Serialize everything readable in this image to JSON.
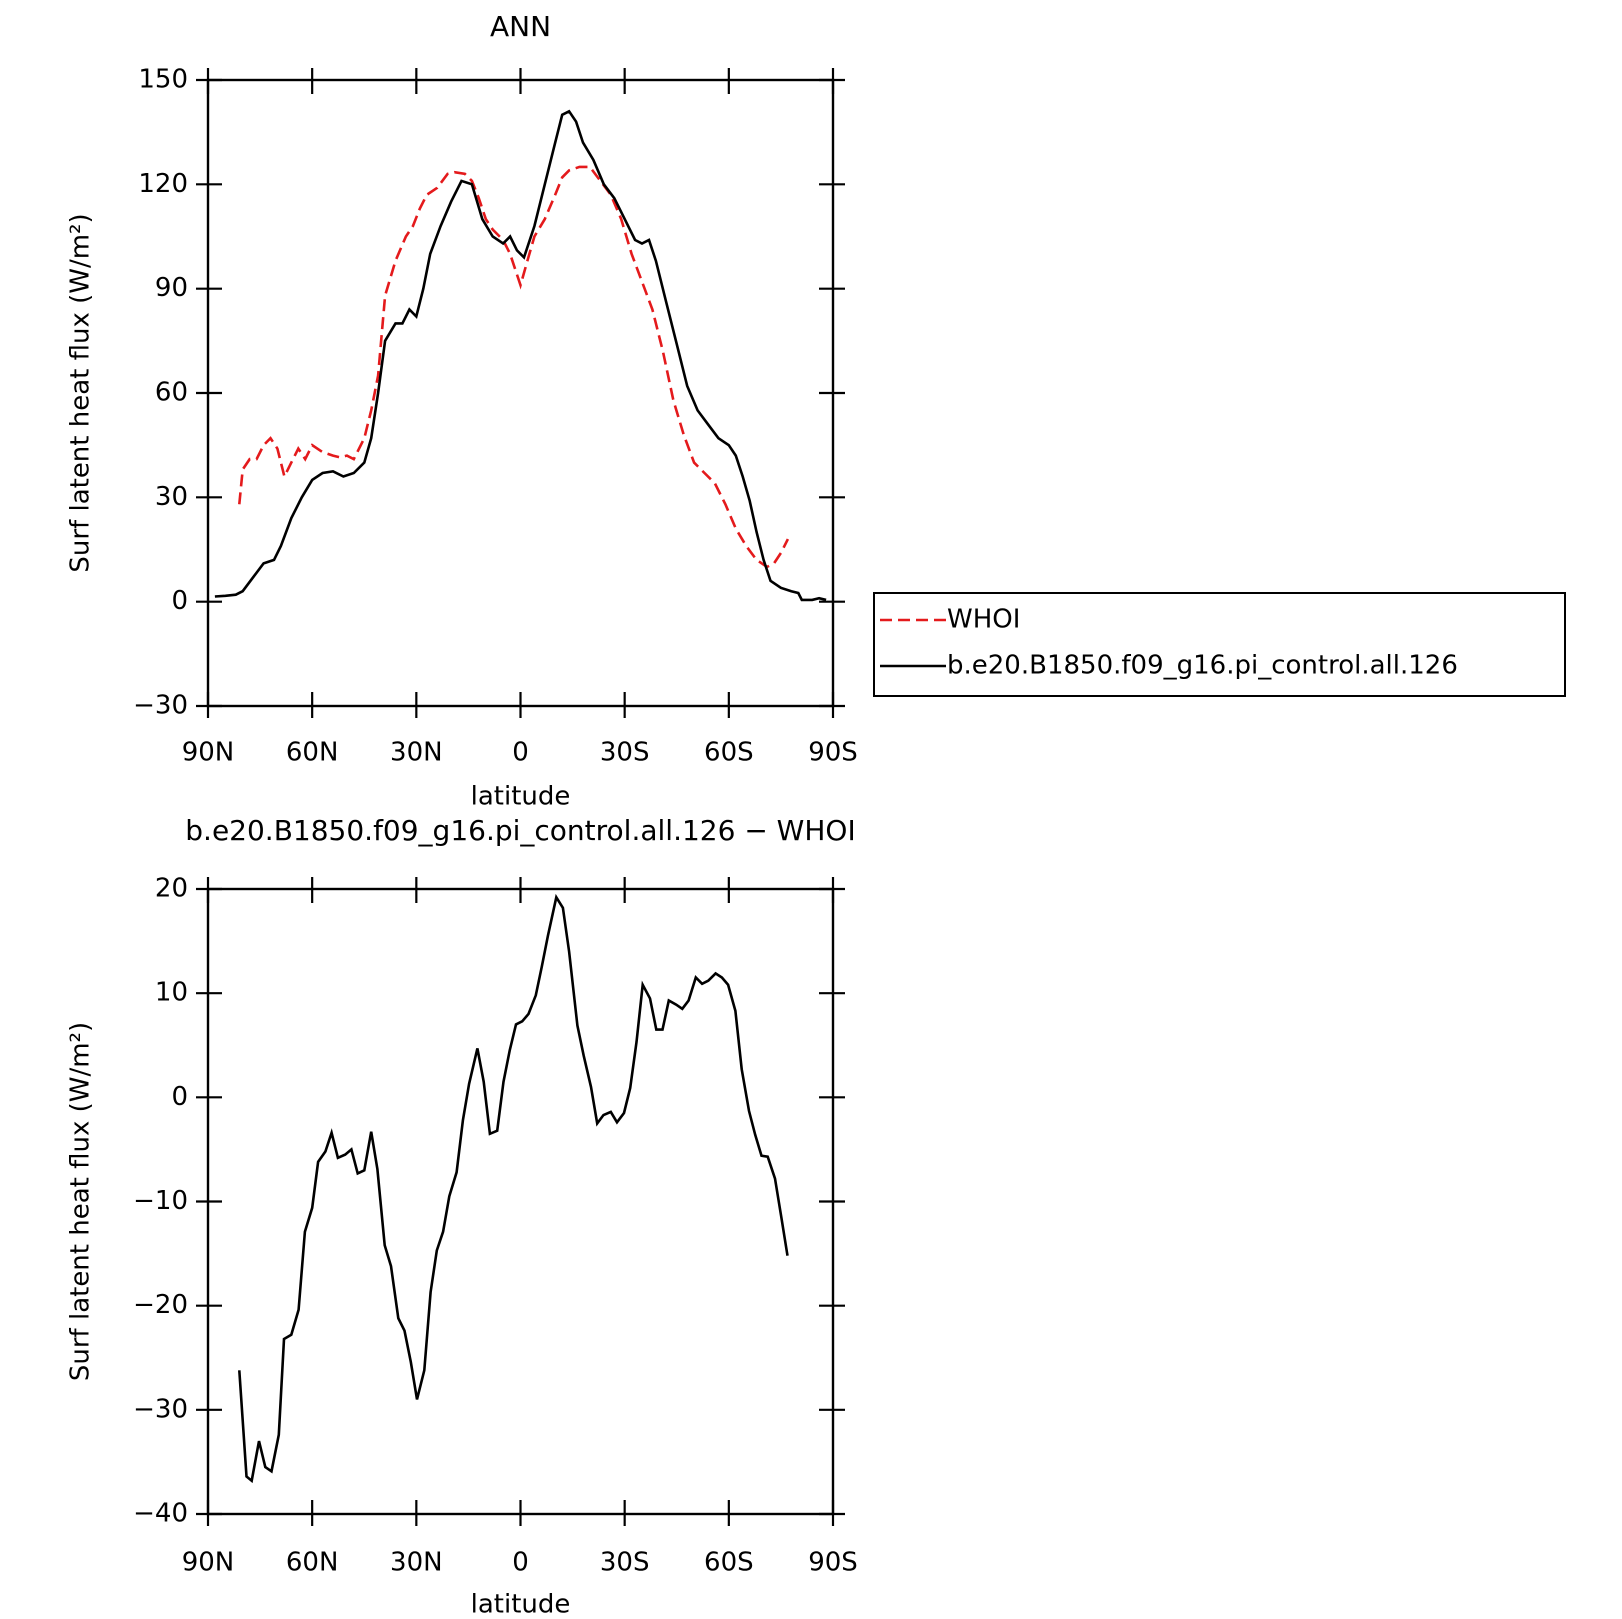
{
  "chart_data": [
    {
      "type": "line",
      "title": "ANN",
      "xlabel": "latitude",
      "ylabel": "Surf latent heat flux (W/m²)",
      "xlim": [
        90,
        -90
      ],
      "xticks": [
        {
          "value": 90,
          "label": "90N"
        },
        {
          "value": 60,
          "label": "60N"
        },
        {
          "value": 30,
          "label": "30N"
        },
        0,
        {
          "value": -30,
          "label": "30S"
        },
        {
          "value": -60,
          "label": "60S"
        },
        {
          "value": -90,
          "label": "90S"
        }
      ],
      "ylim": [
        -30,
        150
      ],
      "yticks": [
        {
          "value": -30,
          "label": "−30"
        },
        0,
        30,
        60,
        90,
        120,
        150
      ],
      "legend": "right",
      "series": [
        {
          "name": "WHOI",
          "color": "#e41a1c",
          "dashed": true,
          "x": [
            81,
            80,
            78,
            76,
            74,
            72,
            70,
            68,
            66,
            64,
            62,
            60,
            57,
            54,
            52,
            50,
            48,
            45,
            43,
            41,
            39,
            36,
            33,
            31,
            29,
            27,
            24,
            21,
            19,
            16,
            14,
            12,
            10,
            8,
            5,
            3,
            0,
            -2,
            -4,
            -7,
            -10,
            -12,
            -14,
            -17,
            -20,
            -23,
            -26,
            -29,
            -32,
            -35,
            -38,
            -41,
            -44,
            -47,
            -50,
            -53,
            -56,
            -59,
            -62,
            -65,
            -68,
            -71,
            -73,
            -75,
            -77
          ],
          "values": [
            28,
            38,
            41,
            41,
            45,
            47,
            44,
            36,
            40,
            44,
            41,
            45,
            43,
            42,
            41.5,
            42,
            41,
            47,
            55,
            65,
            88,
            98,
            105,
            108,
            113,
            117,
            119,
            123,
            123.5,
            123,
            121,
            116,
            110,
            107,
            104,
            100,
            91,
            98,
            105,
            110,
            117,
            122,
            124,
            125,
            125,
            121,
            117,
            110,
            100,
            92,
            84,
            72,
            58,
            48,
            40,
            37,
            34,
            28,
            21,
            16,
            12,
            10,
            11,
            14,
            18
          ]
        },
        {
          "name": "b.e20.B1850.f09_g16.pi_control.all.126",
          "color": "#000000",
          "dashed": false,
          "x": [
            88,
            85,
            82,
            80,
            77,
            74,
            71,
            69,
            66,
            63,
            60,
            57,
            54,
            51,
            48,
            45,
            43,
            41,
            39,
            36,
            34,
            32,
            30,
            28,
            26,
            23,
            20,
            17,
            14,
            11,
            8,
            5,
            3,
            1,
            -1,
            -4,
            -7,
            -10,
            -12,
            -14,
            -16,
            -18,
            -21,
            -24,
            -27,
            -30,
            -33,
            -35,
            -37,
            -39,
            -42,
            -45,
            -48,
            -51,
            -54,
            -57,
            -60,
            -62,
            -64,
            -66,
            -68,
            -70,
            -72,
            -75,
            -78,
            -80,
            -81,
            -84,
            -86,
            -88
          ],
          "values": [
            1.5,
            1.7,
            2,
            3,
            7,
            11,
            12,
            16,
            24,
            30,
            35,
            37,
            37.5,
            36,
            37,
            40,
            47,
            60,
            75,
            80,
            80,
            84,
            82,
            90,
            100,
            108,
            115,
            121,
            120,
            110,
            105,
            103,
            105,
            101,
            99,
            108,
            120,
            132,
            140,
            141,
            138,
            132,
            127,
            120,
            116,
            110,
            104,
            103,
            104,
            98,
            86,
            74,
            62,
            55,
            51,
            47,
            45,
            42,
            36,
            29,
            20,
            12,
            6,
            4,
            3,
            2.5,
            0.5,
            0.5,
            1,
            0.5
          ]
        }
      ]
    },
    {
      "type": "line",
      "title": "b.e20.B1850.f09_g16.pi_control.all.126 − WHOI",
      "xlabel": "latitude",
      "ylabel": "Surf latent heat flux (W/m²)",
      "xlim": [
        90,
        -90
      ],
      "xticks": [
        {
          "value": 90,
          "label": "90N"
        },
        {
          "value": 60,
          "label": "60N"
        },
        {
          "value": 30,
          "label": "30N"
        },
        0,
        {
          "value": -30,
          "label": "30S"
        },
        {
          "value": -60,
          "label": "60S"
        },
        {
          "value": -90,
          "label": "90S"
        }
      ],
      "ylim": [
        -40,
        20
      ],
      "yticks": [
        {
          "value": -40,
          "label": "−40"
        },
        {
          "value": -30,
          "label": "−30"
        },
        {
          "value": -20,
          "label": "−20"
        },
        {
          "value": -10,
          "label": "−10"
        },
        0,
        10,
        20
      ],
      "color": "#000000",
      "x": [
        81,
        78.9,
        77.4,
        75.3,
        73.5,
        71.7,
        69.6,
        68.1,
        66,
        63.9,
        62.1,
        60,
        58.3,
        56.2,
        54.4,
        52.6,
        50.5,
        48.7,
        46.9,
        45,
        43,
        41.2,
        39.1,
        37.3,
        35.2,
        33.4,
        31.6,
        29.8,
        27.7,
        25.9,
        24.1,
        22.3,
        20.5,
        18.4,
        16.6,
        14.8,
        12.4,
        10.6,
        8.8,
        6.7,
        4.9,
        3.1,
        1.3,
        -0.5,
        -2.3,
        -4.4,
        -6.1,
        -7.9,
        -10.3,
        -12.2,
        -14,
        -16.4,
        -18.2,
        -20.3,
        -22.1,
        -23.9,
        -26,
        -27.8,
        -29.8,
        -31.6,
        -33.4,
        -35.2,
        -37.3,
        -39.1,
        -40.9,
        -42.7,
        -44.8,
        -46.6,
        -48.4,
        -50.5,
        -52.3,
        -54.1,
        -56.2,
        -58,
        -59.8,
        -61.9,
        -63.7,
        -65.8,
        -67.6,
        -69.4,
        -71.2,
        -73.3,
        -75.1,
        -76.9
      ],
      "values": [
        -26.2,
        -36.4,
        -36.8,
        -33,
        -35.5,
        -35.9,
        -32.4,
        -23.2,
        -22.8,
        -20.4,
        -12.9,
        -10.6,
        -6.2,
        -5.2,
        -3.4,
        -5.8,
        -5.5,
        -5,
        -7.3,
        -7,
        -3.3,
        -6.9,
        -14.2,
        -16.2,
        -21.2,
        -22.4,
        -25.4,
        -29,
        -26.2,
        -18.7,
        -14.7,
        -12.9,
        -9.5,
        -7.2,
        -2.2,
        1.3,
        4.7,
        1.5,
        -3.5,
        -3.2,
        1.5,
        4.5,
        7,
        7.3,
        8,
        9.8,
        12.5,
        15.5,
        19.2,
        18.2,
        14,
        6.9,
        4,
        1,
        -2.5,
        -1.7,
        -1.4,
        -2.4,
        -1.5,
        0.9,
        5.3,
        10.8,
        9.5,
        6.5,
        6.5,
        9.3,
        8.9,
        8.5,
        9.3,
        11.5,
        10.9,
        11.2,
        11.9,
        11.5,
        10.8,
        8.3,
        2.7,
        -1.3,
        -3.6,
        -5.6,
        -5.7,
        -7.8,
        -11.5,
        -15.2
      ]
    }
  ]
}
